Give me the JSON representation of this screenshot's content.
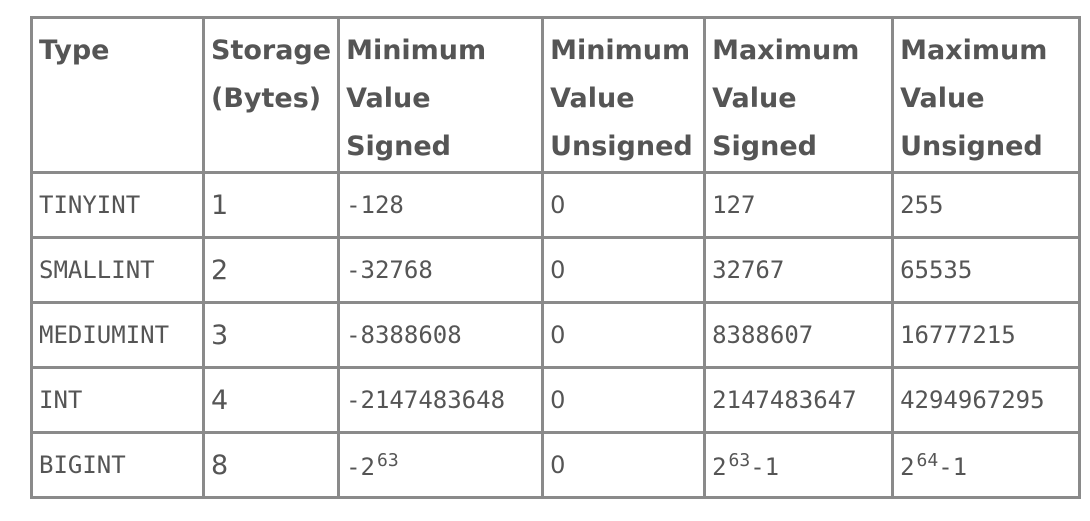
{
  "table": {
    "headers": [
      [
        "Type"
      ],
      [
        "Storage",
        "(Bytes)"
      ],
      [
        "Minimum",
        "Value",
        "Signed"
      ],
      [
        "Minimum",
        "Value",
        "Unsigned"
      ],
      [
        "Maximum",
        "Value",
        "Signed"
      ],
      [
        "Maximum",
        "Value",
        "Unsigned"
      ]
    ],
    "rows": [
      {
        "type": "TINYINT",
        "storage": "1",
        "min_signed": "-128",
        "min_unsigned": "0",
        "max_signed": "127",
        "max_unsigned": "255"
      },
      {
        "type": "SMALLINT",
        "storage": "2",
        "min_signed": "-32768",
        "min_unsigned": "0",
        "max_signed": "32767",
        "max_unsigned": "65535"
      },
      {
        "type": "MEDIUMINT",
        "storage": "3",
        "min_signed": "-8388608",
        "min_unsigned": "0",
        "max_signed": "8388607",
        "max_unsigned": "16777215"
      },
      {
        "type": "INT",
        "storage": "4",
        "min_signed": "-2147483648",
        "min_unsigned": "0",
        "max_signed": "2147483647",
        "max_unsigned": "4294967295"
      },
      {
        "type": "BIGINT",
        "storage": "8",
        "min_signed_base": "-2",
        "min_signed_exp": "63",
        "min_unsigned": "0",
        "max_signed_base": "2",
        "max_signed_exp": "63",
        "max_signed_tail": "-1",
        "max_unsigned_base": "2",
        "max_unsigned_exp": "64",
        "max_unsigned_tail": "-1"
      }
    ]
  }
}
